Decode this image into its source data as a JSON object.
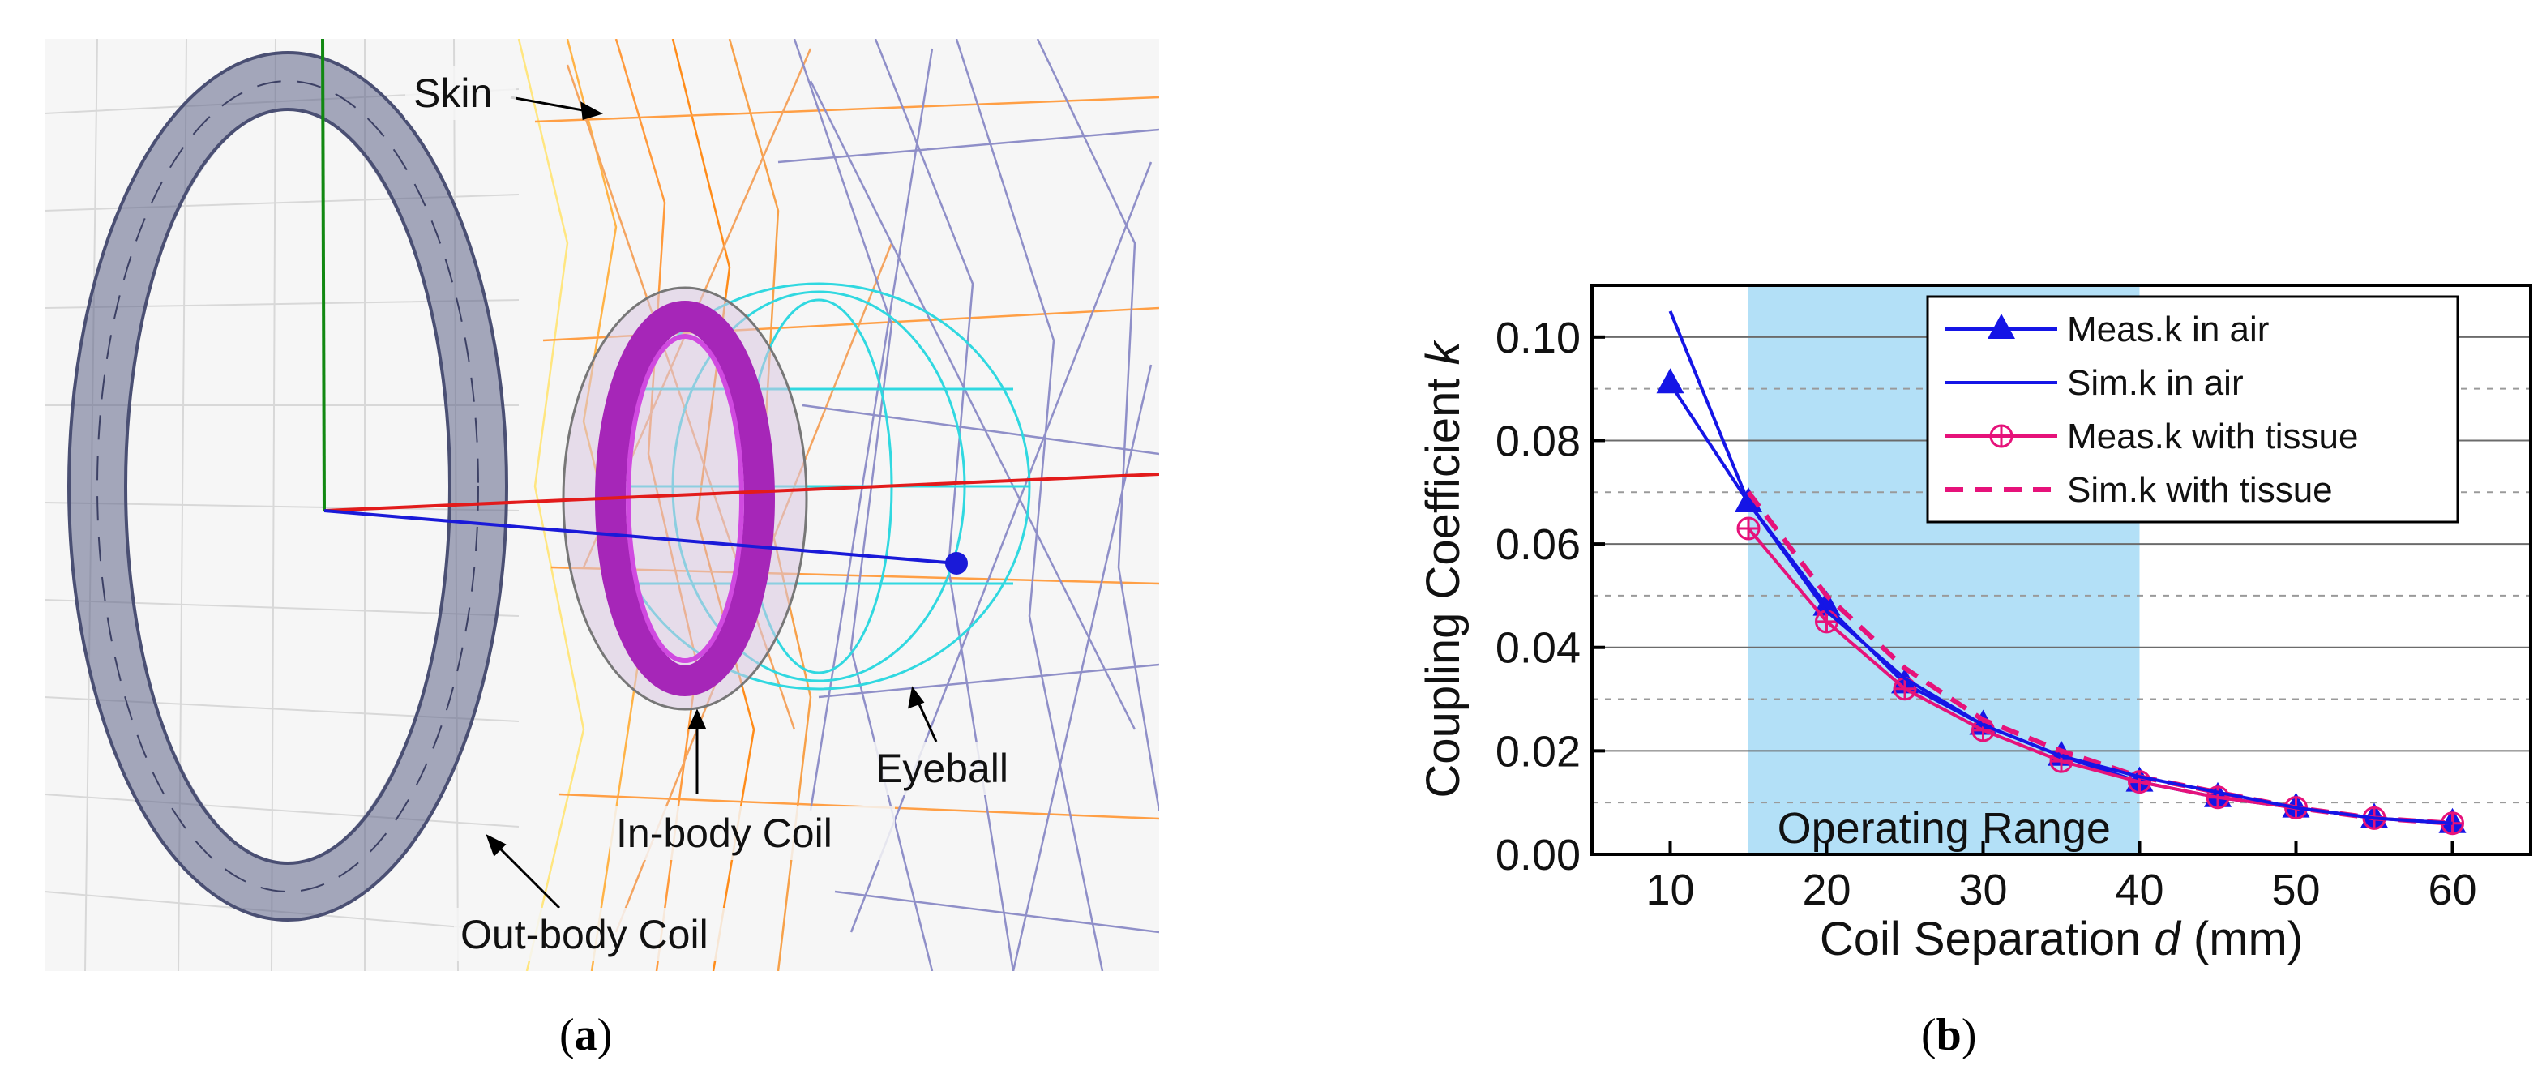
{
  "panel_a": {
    "label": "a",
    "annotations": [
      "Skin",
      "Eyeball",
      "In-body Coil",
      "Out-body Coil"
    ]
  },
  "panel_b": {
    "label": "b"
  },
  "chart_data": {
    "type": "line",
    "xlabel_prefix": "Coil Separation ",
    "xlabel_var": "d",
    "xlabel_suffix": " (mm)",
    "ylabel_prefix": "Coupling Coefficient ",
    "ylabel_var": "k",
    "xlim": [
      5,
      65
    ],
    "ylim": [
      0.0,
      0.11
    ],
    "xticks": [
      10,
      20,
      30,
      40,
      50,
      60
    ],
    "yticks": [
      0.0,
      0.02,
      0.04,
      0.06,
      0.08,
      0.1
    ],
    "ytick_labels": [
      "0.00",
      "0.02",
      "0.04",
      "0.06",
      "0.08",
      "0.10"
    ],
    "grid": true,
    "legend_placement": "top-right",
    "shaded_region": {
      "x": [
        15,
        40
      ],
      "label": "Operating Range",
      "color": "#b3e0f7"
    },
    "series": [
      {
        "name": "Meas.k in air",
        "color": "#1515e6",
        "style": "solid-triangle",
        "x": [
          10,
          15,
          20,
          25,
          30,
          35,
          40,
          45,
          50,
          55,
          60
        ],
        "y": [
          0.091,
          0.068,
          0.048,
          0.033,
          0.025,
          0.019,
          0.014,
          0.011,
          0.009,
          0.007,
          0.006
        ]
      },
      {
        "name": "Sim.k in air",
        "color": "#1515e6",
        "style": "solid",
        "x": [
          10,
          15,
          20,
          25,
          30,
          35,
          40,
          45,
          50,
          55,
          60
        ],
        "y": [
          0.105,
          0.068,
          0.047,
          0.034,
          0.025,
          0.019,
          0.015,
          0.012,
          0.009,
          0.007,
          0.006
        ]
      },
      {
        "name": "Meas.k with tissue",
        "color": "#e6127a",
        "style": "solid-circleplus",
        "x": [
          15,
          20,
          25,
          30,
          35,
          40,
          45,
          50,
          55,
          60
        ],
        "y": [
          0.063,
          0.045,
          0.032,
          0.024,
          0.018,
          0.014,
          0.011,
          0.009,
          0.007,
          0.006
        ]
      },
      {
        "name": "Sim.k with tissue",
        "color": "#e6127a",
        "style": "dashed",
        "x": [
          15,
          20,
          25,
          30,
          35,
          40,
          45,
          50,
          55,
          60
        ],
        "y": [
          0.07,
          0.05,
          0.036,
          0.026,
          0.02,
          0.015,
          0.012,
          0.009,
          0.007,
          0.006
        ]
      }
    ]
  }
}
